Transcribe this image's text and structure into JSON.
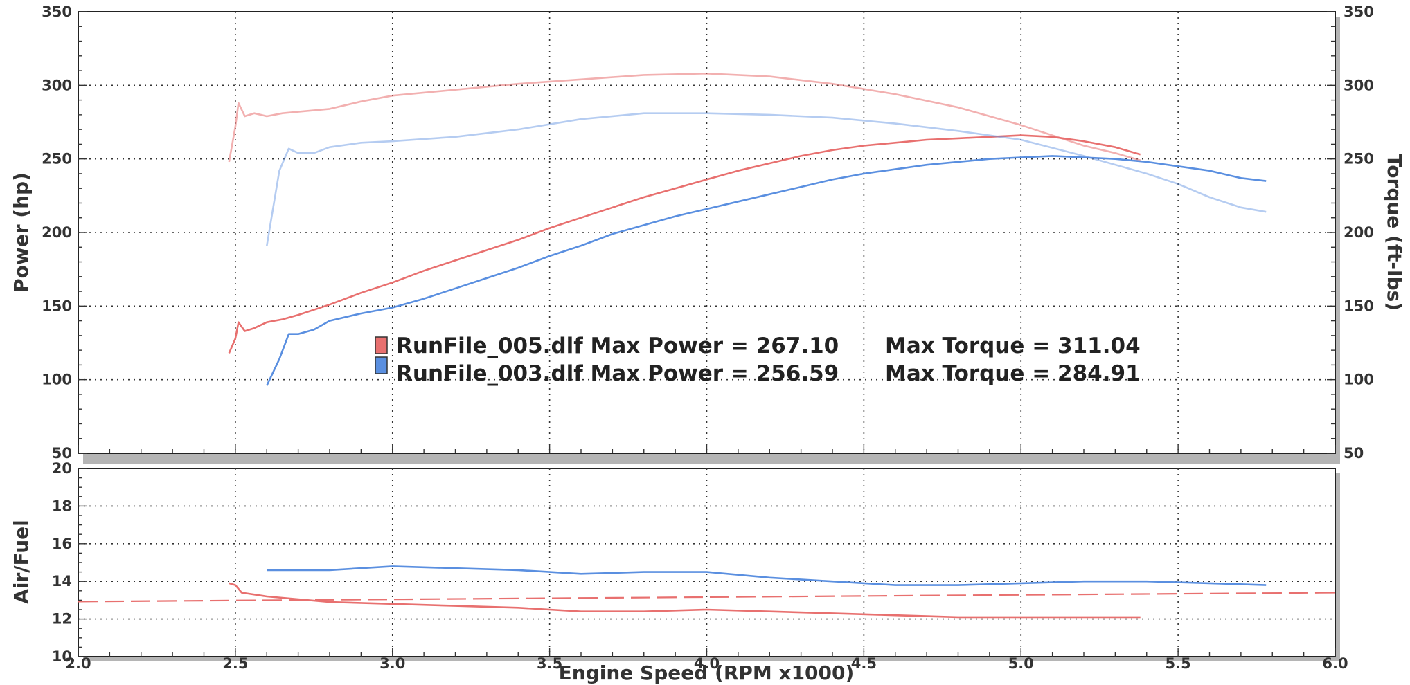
{
  "chart_data": [
    {
      "type": "line",
      "panel": "power-torque",
      "xlabel": "Engine Speed (RPM x1000)",
      "ylabel": "Power (hp)",
      "ylabel_right": "Torque (ft-lbs)",
      "xlim": [
        2.0,
        6.0
      ],
      "ylim": [
        50,
        350
      ],
      "ylim_right": [
        50,
        350
      ],
      "x_ticks": [
        "2.0",
        "2.5",
        "3.0",
        "3.5",
        "4.0",
        "4.5",
        "5.0",
        "5.5",
        "6.0"
      ],
      "y_ticks": [
        "50",
        "100",
        "150",
        "200",
        "250",
        "300",
        "350"
      ],
      "y_ticks_right": [
        "50",
        "100",
        "150",
        "200",
        "250",
        "300",
        "350"
      ],
      "grid": true,
      "legend": [
        {
          "label": "RunFile_005.dlf Max Power = 267.10",
          "torque_label": "Max Torque = 311.04",
          "color": "#e8706f"
        },
        {
          "label": "RunFile_003.dlf Max Power = 256.59",
          "torque_label": "Max Torque = 284.91",
          "color": "#5a8fe0"
        }
      ],
      "series": [
        {
          "quantity": "power",
          "run": 0,
          "color": "#e8706f",
          "alpha": 1.0,
          "x": [
            2.48,
            2.5,
            2.51,
            2.53,
            2.56,
            2.6,
            2.65,
            2.7,
            2.8,
            2.9,
            3.0,
            3.1,
            3.2,
            3.3,
            3.4,
            3.5,
            3.6,
            3.7,
            3.8,
            3.9,
            4.0,
            4.1,
            4.2,
            4.3,
            4.4,
            4.5,
            4.6,
            4.7,
            4.8,
            4.9,
            5.0,
            5.1,
            5.2,
            5.3,
            5.38
          ],
          "y": [
            118,
            128,
            139,
            133,
            135,
            139,
            141,
            144,
            151,
            159,
            166,
            174,
            181,
            188,
            195,
            203,
            210,
            217,
            224,
            230,
            236,
            242,
            247,
            252,
            256,
            259,
            261,
            263,
            264,
            265,
            266,
            265,
            262,
            258,
            253
          ]
        },
        {
          "quantity": "torque",
          "run": 0,
          "color": "#e8706f",
          "alpha": 0.55,
          "x": [
            2.48,
            2.5,
            2.51,
            2.53,
            2.56,
            2.6,
            2.65,
            2.7,
            2.8,
            2.9,
            3.0,
            3.2,
            3.4,
            3.6,
            3.8,
            4.0,
            4.2,
            4.4,
            4.6,
            4.8,
            5.0,
            5.1,
            5.2,
            5.3,
            5.38
          ],
          "y": [
            248,
            272,
            288,
            279,
            281,
            279,
            281,
            282,
            284,
            289,
            293,
            297,
            301,
            304,
            307,
            308,
            306,
            301,
            294,
            285,
            273,
            266,
            259,
            254,
            249
          ]
        },
        {
          "quantity": "power",
          "run": 1,
          "color": "#5a8fe0",
          "alpha": 1.0,
          "x": [
            2.6,
            2.64,
            2.67,
            2.7,
            2.75,
            2.8,
            2.9,
            3.0,
            3.1,
            3.2,
            3.3,
            3.4,
            3.5,
            3.6,
            3.7,
            3.8,
            3.9,
            4.0,
            4.1,
            4.2,
            4.3,
            4.4,
            4.5,
            4.6,
            4.7,
            4.8,
            4.9,
            5.0,
            5.1,
            5.2,
            5.3,
            5.4,
            5.5,
            5.6,
            5.7,
            5.78
          ],
          "y": [
            96,
            114,
            131,
            131,
            134,
            140,
            145,
            149,
            155,
            162,
            169,
            176,
            184,
            191,
            199,
            205,
            211,
            216,
            221,
            226,
            231,
            236,
            240,
            243,
            246,
            248,
            250,
            251,
            252,
            251,
            250,
            248,
            245,
            242,
            237,
            235
          ]
        },
        {
          "quantity": "torque",
          "run": 1,
          "color": "#5a8fe0",
          "alpha": 0.45,
          "x": [
            2.6,
            2.64,
            2.67,
            2.7,
            2.75,
            2.8,
            2.9,
            3.0,
            3.2,
            3.4,
            3.6,
            3.8,
            4.0,
            4.2,
            4.4,
            4.6,
            4.8,
            5.0,
            5.2,
            5.4,
            5.5,
            5.6,
            5.7,
            5.78
          ],
          "y": [
            191,
            242,
            257,
            254,
            254,
            258,
            261,
            262,
            265,
            270,
            277,
            281,
            281,
            280,
            278,
            274,
            269,
            263,
            252,
            240,
            233,
            224,
            217,
            214
          ]
        }
      ]
    },
    {
      "type": "line",
      "panel": "air-fuel",
      "xlabel": "Engine Speed (RPM x1000)",
      "ylabel": "Air/Fuel",
      "xlim": [
        2.0,
        6.0
      ],
      "ylim": [
        10,
        20
      ],
      "x_ticks": [
        "2.0",
        "2.5",
        "3.0",
        "3.5",
        "4.0",
        "4.5",
        "5.0",
        "5.5",
        "6.0"
      ],
      "y_ticks": [
        "10",
        "12",
        "14",
        "16",
        "18",
        "20"
      ],
      "grid": true,
      "reference_line": {
        "y": 13.0,
        "color": "#e8706f",
        "style": "dashed"
      },
      "series": [
        {
          "run": 1,
          "color": "#5a8fe0",
          "x": [
            2.6,
            2.8,
            3.0,
            3.2,
            3.4,
            3.6,
            3.8,
            4.0,
            4.2,
            4.4,
            4.6,
            4.8,
            5.0,
            5.2,
            5.4,
            5.6,
            5.78
          ],
          "y": [
            14.6,
            14.6,
            14.8,
            14.7,
            14.6,
            14.4,
            14.5,
            14.5,
            14.2,
            14.0,
            13.8,
            13.8,
            13.9,
            14.0,
            14.0,
            13.9,
            13.8
          ]
        },
        {
          "run": 0,
          "color": "#e8706f",
          "x": [
            2.48,
            2.5,
            2.52,
            2.6,
            2.8,
            3.0,
            3.2,
            3.4,
            3.6,
            3.8,
            4.0,
            4.2,
            4.4,
            4.6,
            4.8,
            5.0,
            5.2,
            5.38
          ],
          "y": [
            13.9,
            13.8,
            13.4,
            13.2,
            12.9,
            12.8,
            12.7,
            12.6,
            12.4,
            12.4,
            12.5,
            12.4,
            12.3,
            12.2,
            12.1,
            12.1,
            12.1,
            12.1
          ]
        }
      ]
    }
  ]
}
